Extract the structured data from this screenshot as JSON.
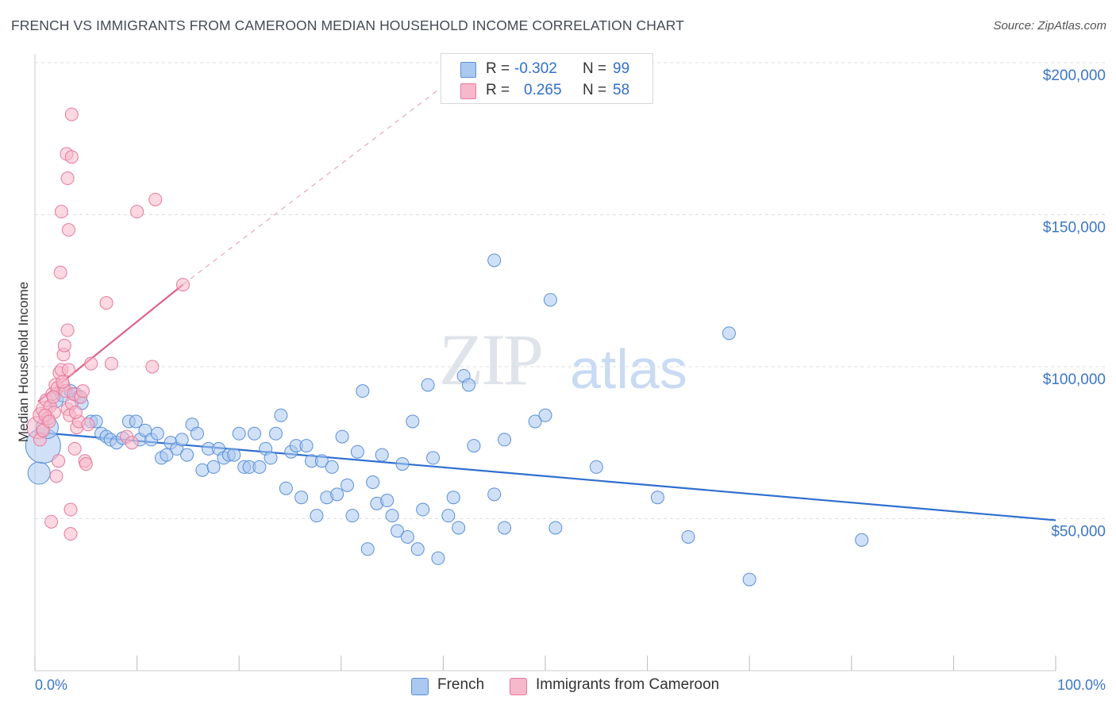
{
  "title": "FRENCH VS IMMIGRANTS FROM CAMEROON MEDIAN HOUSEHOLD INCOME CORRELATION CHART",
  "source": "Source: ZipAtlas.com",
  "watermark": {
    "zip": "ZIP",
    "atlas": "atlas"
  },
  "legend": {
    "rows": [
      {
        "r_label": "R =",
        "r_value": "-0.302",
        "n_label": "N =",
        "n_value": "99",
        "color": "#aac8f0"
      },
      {
        "r_label": "R =",
        "r_value": "0.265",
        "n_label": "N =",
        "n_value": "58",
        "color": "#f7b8cb"
      }
    ]
  },
  "bottom_legend": [
    {
      "label": "French",
      "color": "#aac8f0"
    },
    {
      "label": "Immigrants from Cameroon",
      "color": "#f7b8cb"
    }
  ],
  "colors": {
    "blue_fill": "#aac8f0",
    "blue_stroke": "#5a8fd8",
    "blue_line": "#2f6fcf",
    "pink_fill": "#f7b8cb",
    "pink_stroke": "#e57a9c",
    "pink_line": "#e0608a",
    "grid": "#dddddd",
    "tick_text": "#3b76c9"
  },
  "chart_data": {
    "type": "scatter",
    "title": "FRENCH VS IMMIGRANTS FROM CAMEROON MEDIAN HOUSEHOLD INCOME CORRELATION CHART",
    "xlabel": "",
    "ylabel": "Median Household Income",
    "xlim": [
      0,
      100
    ],
    "ylim": [
      0,
      200000
    ],
    "x_tick_labels": [
      "0.0%",
      "100.0%"
    ],
    "y_ticks": [
      50000,
      100000,
      150000,
      200000
    ],
    "y_tick_labels": [
      "$50,000",
      "$100,000",
      "$150,000",
      "$200,000"
    ],
    "grid": true,
    "series": [
      {
        "name": "French",
        "color": "#aac8f0",
        "trend": {
          "x": [
            0,
            100
          ],
          "y": [
            78500,
            49500
          ]
        },
        "points": [
          [
            0.4,
            65000,
            14
          ],
          [
            0.8,
            74000,
            22
          ],
          [
            1.2,
            80000,
            14
          ],
          [
            2.0,
            89000,
            10
          ],
          [
            2.8,
            91000,
            10
          ],
          [
            3.5,
            92000,
            8
          ],
          [
            4.0,
            91000,
            8
          ],
          [
            4.3,
            90000,
            8
          ],
          [
            4.6,
            88000,
            8
          ],
          [
            5.5,
            82000,
            8
          ],
          [
            6.0,
            82000,
            8
          ],
          [
            6.5,
            78000,
            8
          ],
          [
            7.0,
            77000,
            8
          ],
          [
            7.4,
            76000,
            8
          ],
          [
            8.0,
            75000,
            8
          ],
          [
            8.6,
            76500,
            8
          ],
          [
            9.2,
            82000,
            8
          ],
          [
            9.9,
            82000,
            8
          ],
          [
            10.3,
            76000,
            8
          ],
          [
            10.8,
            79000,
            8
          ],
          [
            11.4,
            76000,
            8
          ],
          [
            12.0,
            78000,
            8
          ],
          [
            12.4,
            70000,
            8
          ],
          [
            12.9,
            71000,
            8
          ],
          [
            13.3,
            75000,
            8
          ],
          [
            13.9,
            73000,
            8
          ],
          [
            14.4,
            76000,
            8
          ],
          [
            14.9,
            71000,
            8
          ],
          [
            15.4,
            81000,
            8
          ],
          [
            15.9,
            78000,
            8
          ],
          [
            16.4,
            66000,
            8
          ],
          [
            17.0,
            73000,
            8
          ],
          [
            17.5,
            67000,
            8
          ],
          [
            18.0,
            73000,
            8
          ],
          [
            18.5,
            70000,
            8
          ],
          [
            19.0,
            71000,
            8
          ],
          [
            19.5,
            71000,
            8
          ],
          [
            20.0,
            78000,
            8
          ],
          [
            20.5,
            67000,
            8
          ],
          [
            21.0,
            67000,
            8
          ],
          [
            21.5,
            78000,
            8
          ],
          [
            22.0,
            67000,
            8
          ],
          [
            22.6,
            73000,
            8
          ],
          [
            23.1,
            70000,
            8
          ],
          [
            23.6,
            78000,
            8
          ],
          [
            24.1,
            84000,
            8
          ],
          [
            24.6,
            60000,
            8
          ],
          [
            25.1,
            72000,
            8
          ],
          [
            25.6,
            74000,
            8
          ],
          [
            26.1,
            57000,
            8
          ],
          [
            26.6,
            74000,
            8
          ],
          [
            27.1,
            69000,
            8
          ],
          [
            27.6,
            51000,
            8
          ],
          [
            28.1,
            69000,
            8
          ],
          [
            28.6,
            57000,
            8
          ],
          [
            29.1,
            67000,
            8
          ],
          [
            29.6,
            58000,
            8
          ],
          [
            30.1,
            77000,
            8
          ],
          [
            30.6,
            61000,
            8
          ],
          [
            31.1,
            51000,
            8
          ],
          [
            31.6,
            72000,
            8
          ],
          [
            32.1,
            92000,
            8
          ],
          [
            32.6,
            40000,
            8
          ],
          [
            33.1,
            62000,
            8
          ],
          [
            33.5,
            55000,
            8
          ],
          [
            34.0,
            71000,
            8
          ],
          [
            34.5,
            56000,
            8
          ],
          [
            35.0,
            51000,
            8
          ],
          [
            35.5,
            46000,
            8
          ],
          [
            36.0,
            68000,
            8
          ],
          [
            36.5,
            44000,
            8
          ],
          [
            37.0,
            82000,
            8
          ],
          [
            37.5,
            40000,
            8
          ],
          [
            38.0,
            53000,
            8
          ],
          [
            38.5,
            94000,
            8
          ],
          [
            39.0,
            70000,
            8
          ],
          [
            39.5,
            37000,
            8
          ],
          [
            40.5,
            51000,
            8
          ],
          [
            41.0,
            57000,
            8
          ],
          [
            41.5,
            47000,
            8
          ],
          [
            42.0,
            97000,
            8
          ],
          [
            42.5,
            94000,
            8
          ],
          [
            43.0,
            74000,
            8
          ],
          [
            45.0,
            135000,
            8
          ],
          [
            45.0,
            58000,
            8
          ],
          [
            46.0,
            76000,
            8
          ],
          [
            46.0,
            47000,
            8
          ],
          [
            49.0,
            82000,
            8
          ],
          [
            50.0,
            84000,
            8
          ],
          [
            50.5,
            122000,
            8
          ],
          [
            51.0,
            47000,
            8
          ],
          [
            55.0,
            67000,
            8
          ],
          [
            61.0,
            57000,
            8
          ],
          [
            64.0,
            44000,
            8
          ],
          [
            68.0,
            111000,
            8
          ],
          [
            70.0,
            30000,
            8
          ],
          [
            81.0,
            43000,
            8
          ]
        ]
      },
      {
        "name": "Immigrants from Cameroon",
        "color": "#f7b8cb",
        "trend": {
          "x": [
            0.3,
            14.5
          ],
          "y": [
            88500,
            127000
          ],
          "dashed_to": {
            "x": 43,
            "y": 200000
          }
        },
        "points": [
          [
            0.3,
            80000,
            14
          ],
          [
            0.6,
            84000,
            10
          ],
          [
            0.9,
            86000,
            10
          ],
          [
            1.1,
            89000,
            8
          ],
          [
            1.3,
            83000,
            8
          ],
          [
            1.5,
            87000,
            8
          ],
          [
            1.7,
            91000,
            8
          ],
          [
            1.9,
            85000,
            8
          ],
          [
            2.0,
            94000,
            8
          ],
          [
            2.2,
            93000,
            8
          ],
          [
            2.4,
            98000,
            8
          ],
          [
            2.6,
            99000,
            8
          ],
          [
            2.8,
            94000,
            8
          ],
          [
            3.0,
            92000,
            8
          ],
          [
            3.2,
            86000,
            8
          ],
          [
            3.4,
            84000,
            8
          ],
          [
            3.6,
            88000,
            8
          ],
          [
            3.8,
            91000,
            8
          ],
          [
            2.1,
            64000,
            8
          ],
          [
            2.3,
            69000,
            8
          ],
          [
            1.6,
            49000,
            8
          ],
          [
            3.5,
            53000,
            8
          ],
          [
            3.5,
            45000,
            8
          ],
          [
            2.8,
            104000,
            8
          ],
          [
            2.9,
            107000,
            8
          ],
          [
            3.2,
            112000,
            8
          ],
          [
            2.5,
            131000,
            8
          ],
          [
            3.3,
            145000,
            8
          ],
          [
            2.6,
            151000,
            8
          ],
          [
            3.2,
            162000,
            8
          ],
          [
            3.1,
            170000,
            8
          ],
          [
            3.6,
            169000,
            8
          ],
          [
            3.6,
            183000,
            8
          ],
          [
            3.9,
            73000,
            8
          ],
          [
            4.1,
            80000,
            8
          ],
          [
            4.3,
            82000,
            8
          ],
          [
            4.5,
            90000,
            8
          ],
          [
            4.7,
            92000,
            8
          ],
          [
            4.9,
            69000,
            8
          ],
          [
            5.0,
            68000,
            8
          ],
          [
            5.2,
            81000,
            8
          ],
          [
            5.5,
            101000,
            8
          ],
          [
            7.5,
            101000,
            8
          ],
          [
            7.0,
            121000,
            8
          ],
          [
            9.0,
            77000,
            8
          ],
          [
            9.5,
            75000,
            8
          ],
          [
            10.0,
            151000,
            8
          ],
          [
            11.5,
            100000,
            8
          ],
          [
            11.8,
            155000,
            8
          ],
          [
            14.5,
            127000,
            8
          ],
          [
            0.5,
            76000,
            8
          ],
          [
            0.8,
            79000,
            8
          ],
          [
            1.0,
            84000,
            8
          ],
          [
            1.4,
            82000,
            8
          ],
          [
            1.8,
            90000,
            8
          ],
          [
            2.7,
            95000,
            8
          ],
          [
            3.3,
            99000,
            8
          ],
          [
            4.0,
            85000,
            8
          ]
        ]
      }
    ]
  }
}
